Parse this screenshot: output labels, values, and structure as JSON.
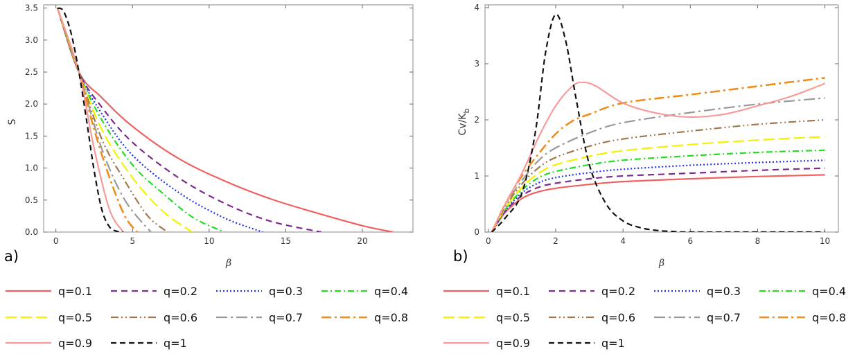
{
  "chart_data": [
    {
      "panel": "a)",
      "type": "line",
      "xlabel": "β",
      "ylabel": "S",
      "xlim": [
        -0.8,
        23.3
      ],
      "ylim": [
        0,
        3.55
      ],
      "xticks": [
        0,
        5,
        10,
        15,
        20
      ],
      "yticks": [
        0.0,
        0.5,
        1.0,
        1.5,
        2.0,
        2.5,
        3.0,
        3.5
      ],
      "xtick_labels": [
        "0",
        "5",
        "10",
        "15",
        "20"
      ],
      "ytick_labels": [
        "0.0",
        "0.5",
        "1.0",
        "1.5",
        "2.0",
        "2.5",
        "3.0",
        "3.5"
      ],
      "series": [
        {
          "name": "q=0.1",
          "x": [
            0.1,
            1.5,
            3,
            5,
            8,
            11,
            14,
            17,
            20,
            22
          ],
          "y": [
            3.5,
            2.5,
            2.1,
            1.65,
            1.15,
            0.8,
            0.52,
            0.3,
            0.1,
            0.0
          ]
        },
        {
          "name": "q=0.2",
          "x": [
            0.1,
            1.5,
            3,
            5,
            8,
            11,
            14,
            17.3
          ],
          "y": [
            3.5,
            2.5,
            1.95,
            1.4,
            0.85,
            0.45,
            0.17,
            0.0
          ]
        },
        {
          "name": "q=0.3",
          "x": [
            0.1,
            1.5,
            3,
            5,
            8,
            11,
            13.5
          ],
          "y": [
            3.5,
            2.5,
            1.85,
            1.2,
            0.62,
            0.22,
            0.0
          ]
        },
        {
          "name": "q=0.4",
          "x": [
            0.1,
            1.5,
            3,
            5,
            7,
            9,
            11
          ],
          "y": [
            3.5,
            2.5,
            1.75,
            1.05,
            0.6,
            0.22,
            0.0
          ]
        },
        {
          "name": "q=0.5",
          "x": [
            0.1,
            1.5,
            3,
            5,
            7,
            8.9
          ],
          "y": [
            3.5,
            2.5,
            1.6,
            0.85,
            0.32,
            0.0
          ]
        },
        {
          "name": "q=0.6",
          "x": [
            0.1,
            1.5,
            3,
            4.5,
            6,
            7.3
          ],
          "y": [
            3.5,
            2.5,
            1.45,
            0.8,
            0.25,
            0.0
          ]
        },
        {
          "name": "q=0.7",
          "x": [
            0.1,
            1.5,
            3,
            4.5,
            6.2
          ],
          "y": [
            3.5,
            2.5,
            1.3,
            0.5,
            0.0
          ]
        },
        {
          "name": "q=0.8",
          "x": [
            0.1,
            1.5,
            2.5,
            3.5,
            4.5,
            5.3
          ],
          "y": [
            3.5,
            2.5,
            1.6,
            0.85,
            0.25,
            0.0
          ]
        },
        {
          "name": "q=0.9",
          "x": [
            0.1,
            1.5,
            2.5,
            3.5,
            4.4
          ],
          "y": [
            3.5,
            2.5,
            1.3,
            0.35,
            0.0
          ]
        },
        {
          "name": "q=1",
          "x": [
            0.1,
            0.5,
            1,
            1.5,
            2,
            2.5,
            3,
            3.5,
            4,
            4.4
          ],
          "y": [
            3.5,
            3.45,
            3.1,
            2.5,
            1.75,
            0.95,
            0.35,
            0.08,
            0.01,
            0.0
          ]
        }
      ]
    },
    {
      "panel": "b)",
      "type": "line",
      "xlabel": "β",
      "ylabel": "Cv/K_b",
      "ylabel_main": "Cv/K",
      "ylabel_sub": "b",
      "xlim": [
        -0.1,
        10.4
      ],
      "ylim": [
        0,
        4.05
      ],
      "xticks": [
        0,
        2,
        4,
        6,
        8,
        10
      ],
      "yticks": [
        0,
        1,
        2,
        3,
        4
      ],
      "xtick_labels": [
        "0",
        "2",
        "4",
        "6",
        "8",
        "10"
      ],
      "ytick_labels": [
        "0",
        "1",
        "2",
        "3",
        "4"
      ],
      "series": [
        {
          "name": "q=0.1",
          "x": [
            0.1,
            0.5,
            1,
            1.5,
            2,
            3,
            4,
            6,
            8,
            10
          ],
          "y": [
            0,
            0.35,
            0.6,
            0.72,
            0.78,
            0.85,
            0.9,
            0.95,
            0.99,
            1.02
          ]
        },
        {
          "name": "q=0.2",
          "x": [
            0.1,
            0.5,
            1,
            1.5,
            2,
            3,
            4,
            6,
            8,
            10
          ],
          "y": [
            0,
            0.37,
            0.65,
            0.8,
            0.87,
            0.95,
            1.0,
            1.05,
            1.1,
            1.14
          ]
        },
        {
          "name": "q=0.3",
          "x": [
            0.1,
            0.5,
            1,
            1.5,
            2,
            3,
            4,
            6,
            8,
            10
          ],
          "y": [
            0,
            0.38,
            0.7,
            0.88,
            0.97,
            1.06,
            1.12,
            1.19,
            1.24,
            1.28
          ]
        },
        {
          "name": "q=0.4",
          "x": [
            0.1,
            0.5,
            1,
            1.5,
            2,
            3,
            4,
            6,
            8,
            10
          ],
          "y": [
            0,
            0.4,
            0.75,
            0.97,
            1.08,
            1.2,
            1.28,
            1.36,
            1.42,
            1.46
          ]
        },
        {
          "name": "q=0.5",
          "x": [
            0.1,
            0.5,
            1,
            1.5,
            2,
            3,
            4,
            6,
            8,
            10
          ],
          "y": [
            0,
            0.42,
            0.8,
            1.05,
            1.2,
            1.35,
            1.45,
            1.56,
            1.64,
            1.7
          ]
        },
        {
          "name": "q=0.6",
          "x": [
            0.1,
            0.5,
            1,
            1.5,
            2,
            3,
            4,
            6,
            8,
            10
          ],
          "y": [
            0,
            0.45,
            0.86,
            1.15,
            1.33,
            1.53,
            1.66,
            1.8,
            1.92,
            2.0
          ]
        },
        {
          "name": "q=0.7",
          "x": [
            0.1,
            0.5,
            1,
            1.5,
            2,
            3,
            4,
            6,
            8,
            10
          ],
          "y": [
            0,
            0.48,
            0.92,
            1.28,
            1.5,
            1.77,
            1.95,
            2.13,
            2.28,
            2.39
          ]
        },
        {
          "name": "q=0.8",
          "x": [
            0.1,
            0.5,
            1,
            1.5,
            2,
            2.5,
            3,
            4,
            6,
            8,
            10
          ],
          "y": [
            0,
            0.5,
            1.0,
            1.4,
            1.75,
            1.98,
            2.1,
            2.3,
            2.45,
            2.6,
            2.75
          ]
        },
        {
          "name": "q=0.9",
          "x": [
            0.1,
            0.5,
            1,
            1.5,
            2,
            2.5,
            2.8,
            3.2,
            4,
            5,
            6,
            7,
            8,
            9,
            10
          ],
          "y": [
            0,
            0.5,
            1.05,
            1.7,
            2.25,
            2.6,
            2.67,
            2.6,
            2.3,
            2.12,
            2.05,
            2.1,
            2.25,
            2.42,
            2.65
          ]
        },
        {
          "name": "q=1",
          "x": [
            0.1,
            0.5,
            1,
            1.4,
            1.7,
            2,
            2.3,
            2.6,
            3,
            3.5,
            4,
            4.5,
            5,
            5.5,
            6,
            8,
            10
          ],
          "y": [
            0,
            0.25,
            0.7,
            1.8,
            3.2,
            3.88,
            3.4,
            2.4,
            1.2,
            0.5,
            0.2,
            0.08,
            0.03,
            0.01,
            0,
            0,
            0
          ]
        }
      ]
    }
  ],
  "legend": [
    {
      "name": "q=0.1",
      "color": "#f06060",
      "dash": "",
      "width": 2.2
    },
    {
      "name": "q=0.2",
      "color": "#7f2a8f",
      "dash": "9,6",
      "width": 2.2
    },
    {
      "name": "q=0.3",
      "color": "#2233ee",
      "dash": "2,3",
      "width": 2.2
    },
    {
      "name": "q=0.4",
      "color": "#22dd22",
      "dash": "9,4,2,4",
      "width": 2.2
    },
    {
      "name": "q=0.5",
      "color": "#f2f200",
      "dash": "16,6",
      "width": 2.2
    },
    {
      "name": "q=0.6",
      "color": "#a07850",
      "dash": "11,4,2,4,2,4",
      "width": 2.2
    },
    {
      "name": "q=0.7",
      "color": "#999999",
      "dash": "16,5,3,5",
      "width": 2.2
    },
    {
      "name": "q=0.8",
      "color": "#f08c1c",
      "dash": "14,5,3,5",
      "width": 2.6
    },
    {
      "name": "q=0.9",
      "color": "#f79a9a",
      "dash": "",
      "width": 2.2
    },
    {
      "name": "q=1",
      "color": "#111111",
      "dash": "8,5",
      "width": 2.2
    }
  ]
}
